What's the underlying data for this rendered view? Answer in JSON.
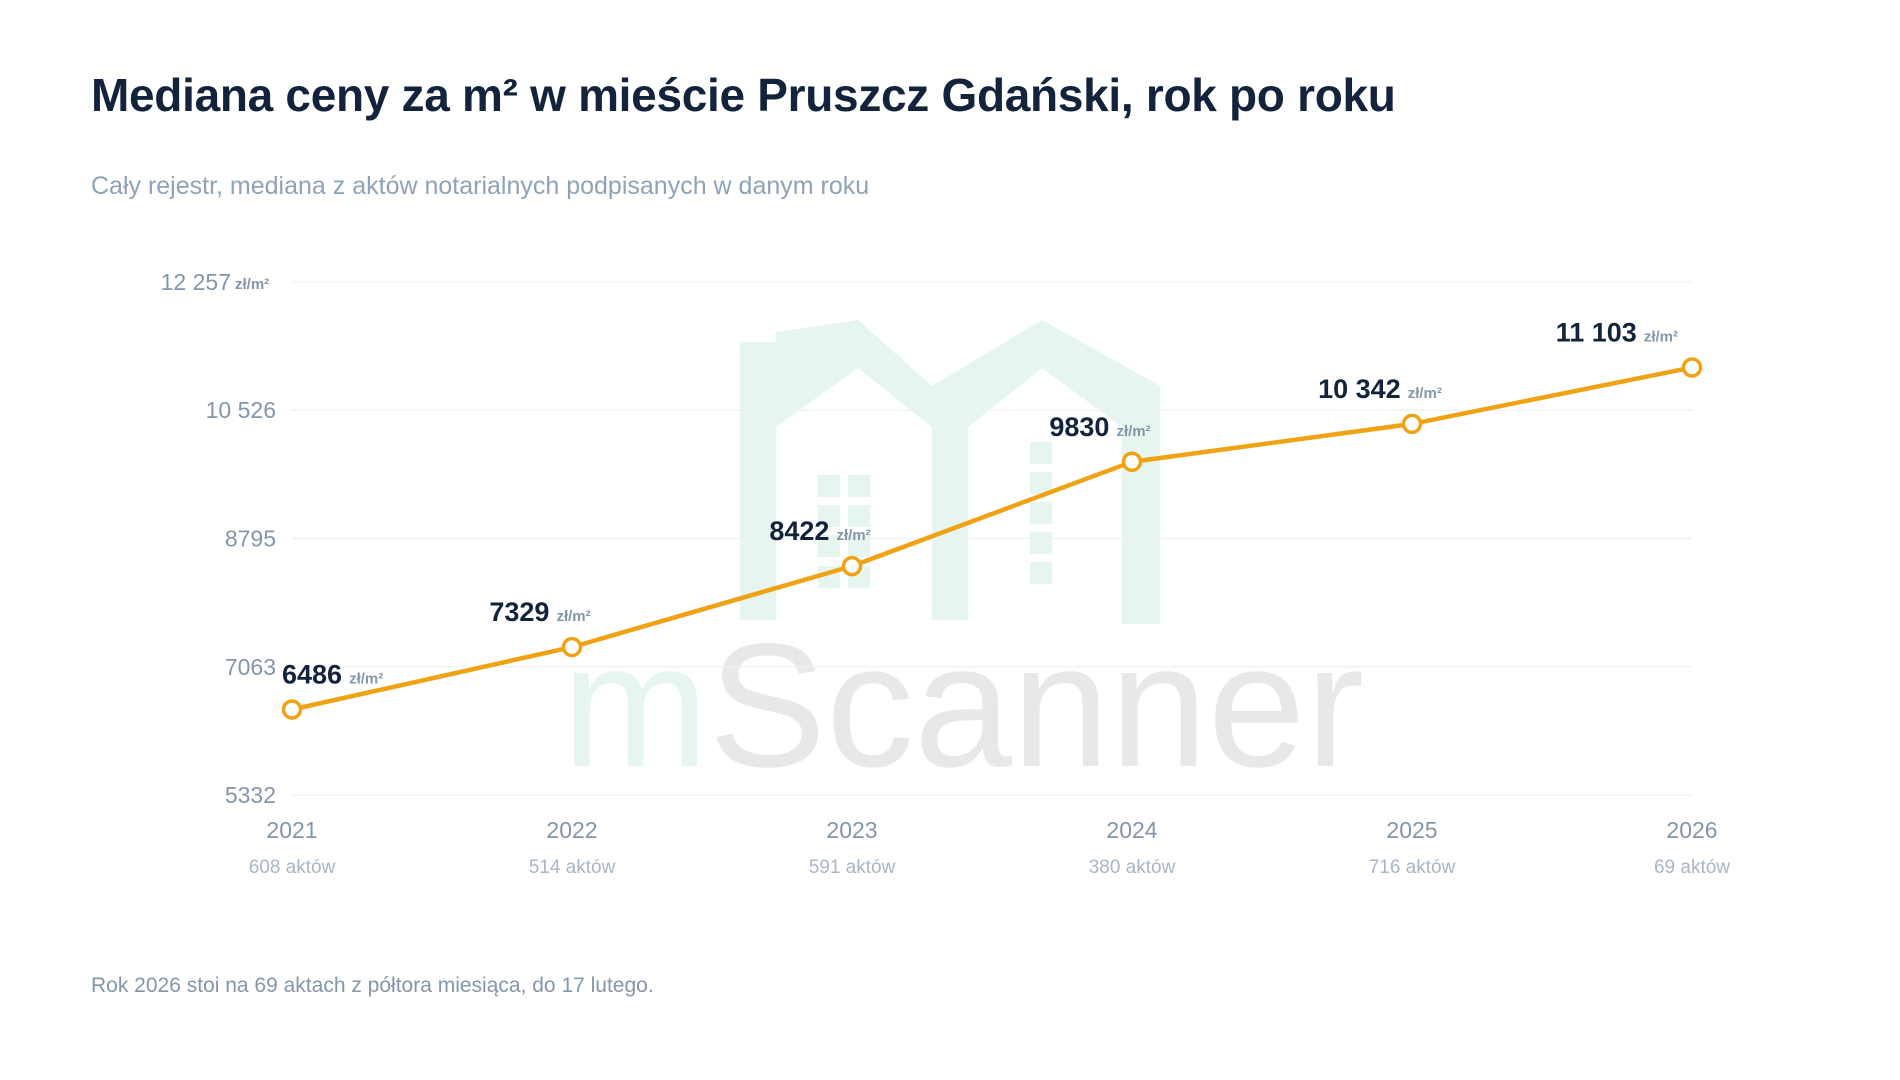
{
  "title": "Mediana ceny za m² w mieście Pruszcz Gdański, rok po roku",
  "subtitle": "Cały rejestr, mediana z aktów notarialnych podpisanych w danym roku",
  "footnote": "Rok 2026 stoi na 69 aktach z półtora miesiąca, do 17 lutego.",
  "watermark": {
    "text": "mScanner",
    "icon": "house-logo-icon"
  },
  "colors": {
    "line": "#f0a215",
    "title": "#13233b",
    "axis_text": "#8396ab",
    "grid": "#eef0f3",
    "watermark_house": "#e6f5ee",
    "watermark_text": "#e8e8e8"
  },
  "chart_data": {
    "type": "line",
    "x": [
      "2021",
      "2022",
      "2023",
      "2024",
      "2025",
      "2026"
    ],
    "x_sublabels": [
      "608 aktów",
      "514 aktów",
      "591 aktów",
      "380 aktów",
      "716 aktów",
      "69 aktów"
    ],
    "series": [
      {
        "values": [
          6486,
          7329,
          8422,
          9830,
          10342,
          11103
        ],
        "labels": [
          "6486",
          "7329",
          "8422",
          "9830",
          "10 342",
          "11 103"
        ]
      }
    ],
    "value_unit": "zł/m²",
    "y_ticks": [
      5332,
      7063,
      8795,
      10526,
      12257
    ],
    "y_tick_labels": [
      "5332",
      "7063",
      "8795",
      "10 526",
      "12 257"
    ],
    "y_top_unit": "zł/m²",
    "ylim": [
      5332,
      12257
    ],
    "grid": true,
    "legend": "none"
  }
}
